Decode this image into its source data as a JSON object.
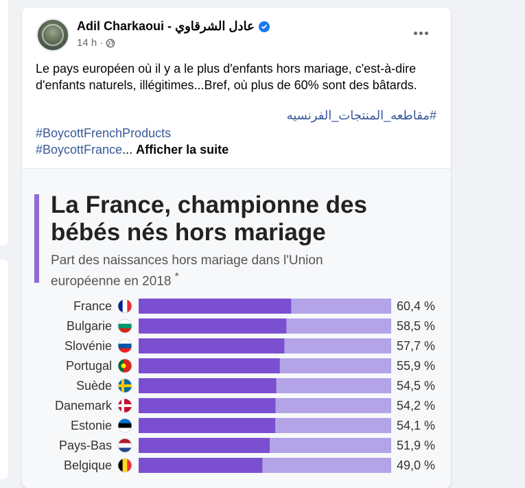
{
  "post": {
    "author": "Adil Charkaoui - عادل الشرقاوي",
    "time": "14 h",
    "text": "Le pays européen où il y a le plus d'enfants hors mariage, c'est-à-dire d'enfants naturels,  illégitimes...Bref, où plus de 60% sont des bâtards.",
    "arabic_hashtag": "#مقاطعه_المنتجات_الفرنسيه",
    "hashtag_1": "#BoycottFrenchProducts",
    "hashtag_2": "#BoycottFrance",
    "ellipsis": "...",
    "see_more": "Afficher la suite"
  },
  "infographic": {
    "title": "La France, championne des bébés nés hors mariage",
    "subtitle": "Part des naissances hors mariage dans l'Union européenne en 2018",
    "footnote_mark": "*"
  },
  "icons": [
    "verified-badge-icon",
    "globe-icon",
    "more-options-icon",
    "flag-icons"
  ],
  "colors": {
    "link": "#385898",
    "bar_dark": "#7a4fd0",
    "bar_light": "#b3a4e8",
    "accent": "#8e6bd6"
  },
  "chart_data": {
    "type": "bar",
    "orientation": "horizontal",
    "title": "La France, championne des bébés nés hors mariage",
    "subtitle": "Part des naissances hors mariage dans l'Union européenne en 2018",
    "categories": [
      "France",
      "Bulgarie",
      "Slovénie",
      "Portugal",
      "Suède",
      "Danemark",
      "Estonie",
      "Pays-Bas",
      "Belgique"
    ],
    "values": [
      60.4,
      58.5,
      57.7,
      55.9,
      54.5,
      54.2,
      54.1,
      51.9,
      49.0
    ],
    "value_labels": [
      "60,4 %",
      "58,5 %",
      "57,7 %",
      "55,9 %",
      "54,5 %",
      "54,2 %",
      "54,1 %",
      "51,9 %",
      "49,0 %"
    ],
    "xlim": [
      0,
      100
    ],
    "grid": false
  }
}
